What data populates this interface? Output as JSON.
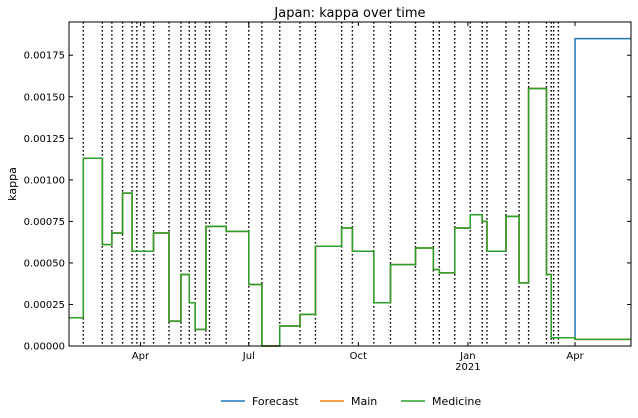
{
  "chart_data": {
    "type": "line",
    "title": "Japan: kappa over time",
    "xlabel": "",
    "ylabel": "kappa",
    "x_unit": "days since 2020-02-01",
    "xlim": [
      0,
      472
    ],
    "ylim": [
      0,
      0.00195
    ],
    "yticks": [
      0,
      0.00025,
      0.0005,
      0.00075,
      0.001,
      0.00125,
      0.0015,
      0.00175
    ],
    "ytick_labels": [
      "0.00000",
      "0.00025",
      "0.00050",
      "0.00075",
      "0.00100",
      "0.00125",
      "0.00150",
      "0.00175"
    ],
    "xticks": [
      {
        "x": 60,
        "label": "Apr",
        "sublabel": ""
      },
      {
        "x": 151,
        "label": "Jul",
        "sublabel": ""
      },
      {
        "x": 243,
        "label": "Oct",
        "sublabel": ""
      },
      {
        "x": 335,
        "label": "Jan",
        "sublabel": "2021"
      },
      {
        "x": 425,
        "label": "Apr",
        "sublabel": ""
      }
    ],
    "change_points": [
      12,
      28,
      36,
      45,
      53,
      57,
      63,
      71,
      84,
      94,
      101,
      106,
      115,
      118,
      132,
      151,
      162,
      177,
      194,
      207,
      229,
      238,
      256,
      270,
      291,
      306,
      311,
      324,
      337,
      347,
      351,
      367,
      378,
      386,
      401,
      405,
      407,
      411
    ],
    "series": [
      {
        "name": "Forecast",
        "color": "#1f77b4",
        "x": [
          0,
          12,
          28,
          36,
          45,
          53,
          71,
          84,
          94,
          101,
          106,
          115,
          132,
          151,
          162,
          177,
          194,
          207,
          229,
          238,
          256,
          270,
          291,
          306,
          311,
          324,
          337,
          347,
          351,
          367,
          378,
          386,
          401,
          405,
          425,
          472
        ],
        "y": [
          0.00017,
          0.00113,
          0.00061,
          0.00068,
          0.00092,
          0.00057,
          0.00068,
          0.00015,
          0.00043,
          0.00026,
          0.0001,
          0.00072,
          0.00069,
          0.00037,
          0.0,
          0.00012,
          0.00019,
          0.0006,
          0.00071,
          0.00057,
          0.00026,
          0.00049,
          0.00059,
          0.00046,
          0.00044,
          0.00071,
          0.00079,
          0.00075,
          0.00057,
          0.00078,
          0.00038,
          0.00155,
          0.00043,
          5e-05,
          0.00185,
          0.00185
        ]
      },
      {
        "name": "Main",
        "color": "#ff7f0e",
        "x": [
          0,
          12,
          28,
          36,
          45,
          53,
          71,
          84,
          94,
          101,
          106,
          115,
          132,
          151,
          162,
          177,
          194,
          207,
          229,
          238,
          256,
          270,
          291,
          306,
          311,
          324,
          337,
          347,
          351,
          367,
          378,
          386,
          401,
          405,
          425,
          472
        ],
        "y": [
          0.00017,
          0.00113,
          0.00061,
          0.00068,
          0.00092,
          0.00057,
          0.00068,
          0.00015,
          0.00043,
          0.00026,
          0.0001,
          0.00072,
          0.00069,
          0.00037,
          0.0,
          0.00012,
          0.00019,
          0.0006,
          0.00071,
          0.00057,
          0.00026,
          0.00049,
          0.00059,
          0.00046,
          0.00044,
          0.00071,
          0.00079,
          0.00075,
          0.00057,
          0.00078,
          0.00038,
          0.00155,
          0.00043,
          5e-05,
          4e-05,
          4e-05
        ]
      },
      {
        "name": "Medicine",
        "color": "#2ca02c",
        "x": [
          0,
          12,
          28,
          36,
          45,
          53,
          71,
          84,
          94,
          101,
          106,
          115,
          132,
          151,
          162,
          177,
          194,
          207,
          229,
          238,
          256,
          270,
          291,
          306,
          311,
          324,
          337,
          347,
          351,
          367,
          378,
          386,
          401,
          405,
          425,
          472
        ],
        "y": [
          0.00017,
          0.00113,
          0.00061,
          0.00068,
          0.00092,
          0.00057,
          0.00068,
          0.00015,
          0.00043,
          0.00026,
          0.0001,
          0.00072,
          0.00069,
          0.00037,
          0.0,
          0.00012,
          0.00019,
          0.0006,
          0.00071,
          0.00057,
          0.00026,
          0.00049,
          0.00059,
          0.00046,
          0.00044,
          0.00071,
          0.00079,
          0.00075,
          0.00057,
          0.00078,
          0.00038,
          0.00155,
          0.00043,
          5e-05,
          4e-05,
          4e-05
        ]
      }
    ],
    "legend": [
      "Forecast",
      "Main",
      "Medicine"
    ],
    "legend_position": "bottom-center",
    "grid": false
  }
}
